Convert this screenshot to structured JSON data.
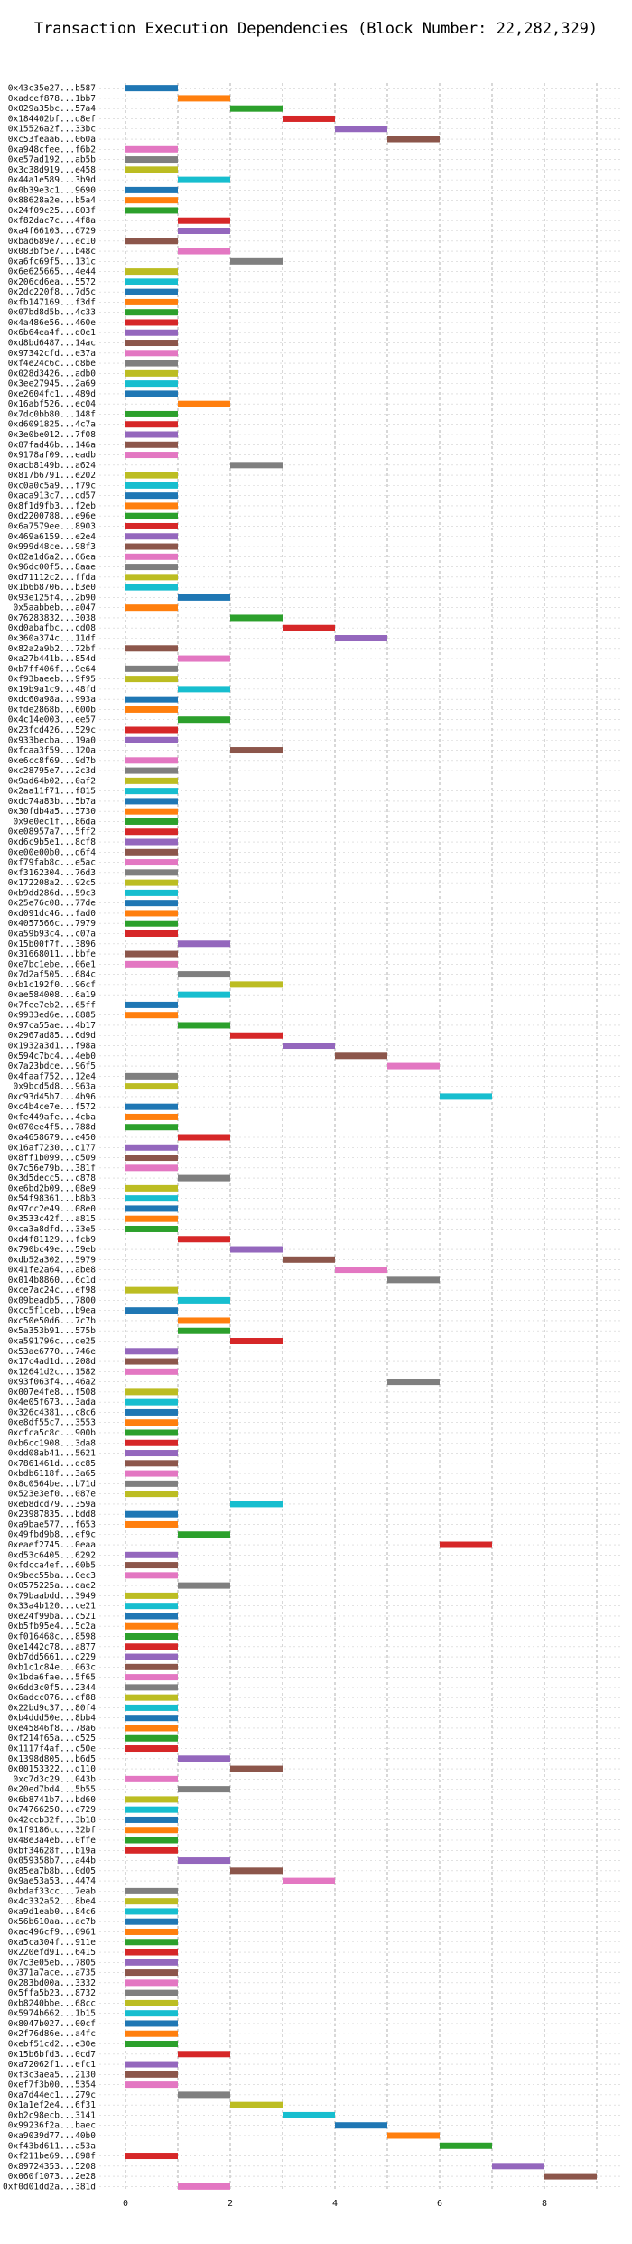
{
  "chart_data": {
    "type": "bar",
    "title": "Transaction Execution Dependencies (Block Number: 22,282,329)",
    "xlabel": "",
    "ylabel": "",
    "xlim": [
      -0.5,
      9.5
    ],
    "xticks": [
      0,
      2,
      4,
      6,
      8
    ],
    "grid": true,
    "palette": [
      "#1f77b4",
      "#ff7f0e",
      "#2ca02c",
      "#d62728",
      "#9467bd",
      "#8c564b",
      "#e377c2",
      "#7f7f7f",
      "#bcbd22",
      "#17becf"
    ],
    "transactions": [
      {
        "hash": "0x43c35e27...b587",
        "start": 0
      },
      {
        "hash": "0xadcef878...1bb7",
        "start": 1
      },
      {
        "hash": "0x029a35bc...57a4",
        "start": 2
      },
      {
        "hash": "0x184402bf...d8ef",
        "start": 3
      },
      {
        "hash": "0x15526a2f...33bc",
        "start": 4
      },
      {
        "hash": "0xc53feaa6...060a",
        "start": 5
      },
      {
        "hash": "0xa948cfee...f6b2",
        "start": 0
      },
      {
        "hash": "0xe57ad192...ab5b",
        "start": 0
      },
      {
        "hash": "0x3c38d919...e458",
        "start": 0
      },
      {
        "hash": "0x44a1e589...3b9d",
        "start": 1
      },
      {
        "hash": "0x0b39e3c1...9690",
        "start": 0
      },
      {
        "hash": "0x88628a2e...b5a4",
        "start": 0
      },
      {
        "hash": "0x24f09c25...803f",
        "start": 0
      },
      {
        "hash": "0xf82dac7c...4f8a",
        "start": 1
      },
      {
        "hash": "0xa4f66103...6729",
        "start": 1
      },
      {
        "hash": "0xbad689e7...ec10",
        "start": 0
      },
      {
        "hash": "0x083bf5e7...b48c",
        "start": 1
      },
      {
        "hash": "0xa6fc69f5...131c",
        "start": 2
      },
      {
        "hash": "0x6e625665...4e44",
        "start": 0
      },
      {
        "hash": "0x206cd6ea...5572",
        "start": 0
      },
      {
        "hash": "0x2dc220f8...7d5c",
        "start": 0
      },
      {
        "hash": "0xfb147169...f3df",
        "start": 0
      },
      {
        "hash": "0x07bd8d5b...4c33",
        "start": 0
      },
      {
        "hash": "0x4a486e56...460e",
        "start": 0
      },
      {
        "hash": "0x6b64ea4f...d0e1",
        "start": 0
      },
      {
        "hash": "0xd8bd6487...14ac",
        "start": 0
      },
      {
        "hash": "0x97342cfd...e37a",
        "start": 0
      },
      {
        "hash": "0xf4e24c6c...d8be",
        "start": 0
      },
      {
        "hash": "0x028d3426...adb0",
        "start": 0
      },
      {
        "hash": "0x3ee27945...2a69",
        "start": 0
      },
      {
        "hash": "0xe2604fc1...489d",
        "start": 0
      },
      {
        "hash": "0x16abf526...ec04",
        "start": 1
      },
      {
        "hash": "0x7dc0bb80...148f",
        "start": 0
      },
      {
        "hash": "0xd6091825...4c7a",
        "start": 0
      },
      {
        "hash": "0x3e0be012...7f08",
        "start": 0
      },
      {
        "hash": "0x87fad46b...146a",
        "start": 0
      },
      {
        "hash": "0x9178af09...eadb",
        "start": 0
      },
      {
        "hash": "0xacb8149b...a624",
        "start": 2
      },
      {
        "hash": "0x817b6791...e202",
        "start": 0
      },
      {
        "hash": "0xc0a0c5a9...f79c",
        "start": 0
      },
      {
        "hash": "0xaca913c7...dd57",
        "start": 0
      },
      {
        "hash": "0x8f1d9fb3...f2eb",
        "start": 0
      },
      {
        "hash": "0xd2200788...e96e",
        "start": 0
      },
      {
        "hash": "0x6a7579ee...8903",
        "start": 0
      },
      {
        "hash": "0x469a6159...e2e4",
        "start": 0
      },
      {
        "hash": "0x999d48ce...98f3",
        "start": 0
      },
      {
        "hash": "0x82a1d6a2...66ea",
        "start": 0
      },
      {
        "hash": "0x96dc00f5...8aae",
        "start": 0
      },
      {
        "hash": "0xd71112c2...ffda",
        "start": 0
      },
      {
        "hash": "0x1b6b8706...b3e0",
        "start": 0
      },
      {
        "hash": "0x93e125f4...2b90",
        "start": 1
      },
      {
        "hash": "0x5aabbeb...a047",
        "start": 0
      },
      {
        "hash": "0x76283832...3038",
        "start": 2
      },
      {
        "hash": "0xd0abafbc...cd08",
        "start": 3
      },
      {
        "hash": "0x360a374c...11df",
        "start": 4
      },
      {
        "hash": "0x82a2a9b2...72bf",
        "start": 0
      },
      {
        "hash": "0xa27b441b...854d",
        "start": 1
      },
      {
        "hash": "0xb7ff406f...9e64",
        "start": 0
      },
      {
        "hash": "0xf93baeeb...9f95",
        "start": 0
      },
      {
        "hash": "0x19b9a1c9...48fd",
        "start": 1
      },
      {
        "hash": "0xdc60a98a...993a",
        "start": 0
      },
      {
        "hash": "0xfde2868b...600b",
        "start": 0
      },
      {
        "hash": "0x4c14e003...ee57",
        "start": 1
      },
      {
        "hash": "0x23fcd426...529c",
        "start": 0
      },
      {
        "hash": "0x933becba...19a0",
        "start": 0
      },
      {
        "hash": "0xfcaa3f59...120a",
        "start": 2
      },
      {
        "hash": "0xe6cc8f69...9d7b",
        "start": 0
      },
      {
        "hash": "0xc28795e7...2c3d",
        "start": 0
      },
      {
        "hash": "0x9ad64b02...0af2",
        "start": 0
      },
      {
        "hash": "0x2aa11f71...f815",
        "start": 0
      },
      {
        "hash": "0xdc74a83b...5b7a",
        "start": 0
      },
      {
        "hash": "0x30fdb4a5...5730",
        "start": 0
      },
      {
        "hash": "0x9e0ec1f...86da",
        "start": 0
      },
      {
        "hash": "0xe08957a7...5ff2",
        "start": 0
      },
      {
        "hash": "0xd6c9b5e1...8cf8",
        "start": 0
      },
      {
        "hash": "0xe00e00b0...d6f4",
        "start": 0
      },
      {
        "hash": "0xf79fab8c...e5ac",
        "start": 0
      },
      {
        "hash": "0xf3162304...76d3",
        "start": 0
      },
      {
        "hash": "0x172208a2...92c5",
        "start": 0
      },
      {
        "hash": "0xb9dd286d...59c3",
        "start": 0
      },
      {
        "hash": "0x25e76c08...77de",
        "start": 0
      },
      {
        "hash": "0xd091dc46...fad0",
        "start": 0
      },
      {
        "hash": "0x4057566c...7979",
        "start": 0
      },
      {
        "hash": "0xa59b93c4...c07a",
        "start": 0
      },
      {
        "hash": "0x15b00f7f...3896",
        "start": 1
      },
      {
        "hash": "0x31668011...bbfe",
        "start": 0
      },
      {
        "hash": "0xe7bc1ebe...06e1",
        "start": 0
      },
      {
        "hash": "0x7d2af505...684c",
        "start": 1
      },
      {
        "hash": "0xb1c192f0...96cf",
        "start": 2
      },
      {
        "hash": "0xae584008...6a19",
        "start": 1
      },
      {
        "hash": "0x7fee7eb2...65ff",
        "start": 0
      },
      {
        "hash": "0x9933ed6e...8885",
        "start": 0
      },
      {
        "hash": "0x97ca55ae...4b17",
        "start": 1
      },
      {
        "hash": "0x2967ad85...6d9d",
        "start": 2
      },
      {
        "hash": "0x1932a3d1...f98a",
        "start": 3
      },
      {
        "hash": "0x594c7bc4...4eb0",
        "start": 4
      },
      {
        "hash": "0x7a23bdce...96f5",
        "start": 5
      },
      {
        "hash": "0x4faaf752...12e4",
        "start": 0
      },
      {
        "hash": "0x9bcd5d8...963a",
        "start": 0
      },
      {
        "hash": "0xc93d45b7...4b96",
        "start": 6
      },
      {
        "hash": "0xc4b4ce7e...f572",
        "start": 0
      },
      {
        "hash": "0xfe449afe...4cba",
        "start": 0
      },
      {
        "hash": "0x070ee4f5...788d",
        "start": 0
      },
      {
        "hash": "0xa4658679...e450",
        "start": 1
      },
      {
        "hash": "0x16af7230...d177",
        "start": 0
      },
      {
        "hash": "0x8ff1b099...d509",
        "start": 0
      },
      {
        "hash": "0x7c56e79b...381f",
        "start": 0
      },
      {
        "hash": "0x3d5decc5...c878",
        "start": 1
      },
      {
        "hash": "0xe6bd2b09...08e9",
        "start": 0
      },
      {
        "hash": "0x54f98361...b8b3",
        "start": 0
      },
      {
        "hash": "0x97cc2e49...08e0",
        "start": 0
      },
      {
        "hash": "0x3533c42f...a815",
        "start": 0
      },
      {
        "hash": "0xca3a8dfd...33e5",
        "start": 0
      },
      {
        "hash": "0xd4f81129...fcb9",
        "start": 1
      },
      {
        "hash": "0x790bc49e...59eb",
        "start": 2
      },
      {
        "hash": "0xdb52a302...5979",
        "start": 3
      },
      {
        "hash": "0x41fe2a64...abe8",
        "start": 4
      },
      {
        "hash": "0x014b8860...6c1d",
        "start": 5
      },
      {
        "hash": "0xce7ac24c...ef98",
        "start": 0
      },
      {
        "hash": "0x09beadb5...7800",
        "start": 1
      },
      {
        "hash": "0xcc5f1ceb...b9ea",
        "start": 0
      },
      {
        "hash": "0xc50e50d6...7c7b",
        "start": 1
      },
      {
        "hash": "0x5a353b91...575b",
        "start": 1
      },
      {
        "hash": "0xa591796c...de25",
        "start": 2
      },
      {
        "hash": "0x53ae6770...746e",
        "start": 0
      },
      {
        "hash": "0x17c4ad1d...208d",
        "start": 0
      },
      {
        "hash": "0x12641d2c...1582",
        "start": 0
      },
      {
        "hash": "0x93f063f4...46a2",
        "start": 5
      },
      {
        "hash": "0x007e4fe8...f508",
        "start": 0
      },
      {
        "hash": "0x4e05f673...3ada",
        "start": 0
      },
      {
        "hash": "0x326c4381...c8c6",
        "start": 0
      },
      {
        "hash": "0xe8df55c7...3553",
        "start": 0
      },
      {
        "hash": "0xcfca5c8c...900b",
        "start": 0
      },
      {
        "hash": "0xb6cc1908...3da8",
        "start": 0
      },
      {
        "hash": "0xdd08ab41...5621",
        "start": 0
      },
      {
        "hash": "0x7861461d...dc85",
        "start": 0
      },
      {
        "hash": "0xbdb6118f...3a65",
        "start": 0
      },
      {
        "hash": "0x8c0564be...b71d",
        "start": 0
      },
      {
        "hash": "0x523e3ef0...087e",
        "start": 0
      },
      {
        "hash": "0xeb8dcd79...359a",
        "start": 2
      },
      {
        "hash": "0x23987835...bdd8",
        "start": 0
      },
      {
        "hash": "0xa9bae577...f653",
        "start": 0
      },
      {
        "hash": "0x49fbd9b8...ef9c",
        "start": 1
      },
      {
        "hash": "0xeaef2745...0eaa",
        "start": 6
      },
      {
        "hash": "0xd53c6405...6292",
        "start": 0
      },
      {
        "hash": "0xfdcca4ef...60b5",
        "start": 0
      },
      {
        "hash": "0x9bec55ba...0ec3",
        "start": 0
      },
      {
        "hash": "0x0575225a...dae2",
        "start": 1
      },
      {
        "hash": "0x79baabdd...3949",
        "start": 0
      },
      {
        "hash": "0x33a4b120...ce21",
        "start": 0
      },
      {
        "hash": "0xe24f99ba...c521",
        "start": 0
      },
      {
        "hash": "0xb5fb95e4...5c2a",
        "start": 0
      },
      {
        "hash": "0xf016468c...8598",
        "start": 0
      },
      {
        "hash": "0xe1442c78...a877",
        "start": 0
      },
      {
        "hash": "0xb7dd5661...d229",
        "start": 0
      },
      {
        "hash": "0xb1c1c84e...063c",
        "start": 0
      },
      {
        "hash": "0x1bda6fae...5f65",
        "start": 0
      },
      {
        "hash": "0x6dd3c0f5...2344",
        "start": 0
      },
      {
        "hash": "0x6adcc076...ef88",
        "start": 0
      },
      {
        "hash": "0x22bd9c37...80f4",
        "start": 0
      },
      {
        "hash": "0xb4ddd50e...8bb4",
        "start": 0
      },
      {
        "hash": "0xe45846f8...78a6",
        "start": 0
      },
      {
        "hash": "0xf214f65a...d525",
        "start": 0
      },
      {
        "hash": "0x1117f4af...c50e",
        "start": 0
      },
      {
        "hash": "0x1398d805...b6d5",
        "start": 1
      },
      {
        "hash": "0x00153322...d110",
        "start": 2
      },
      {
        "hash": "0xc7d3c29...043b",
        "start": 0
      },
      {
        "hash": "0x20ed7bd4...5b55",
        "start": 1
      },
      {
        "hash": "0x6b8741b7...bd60",
        "start": 0
      },
      {
        "hash": "0x74766250...e729",
        "start": 0
      },
      {
        "hash": "0x42ccb32f...3b18",
        "start": 0
      },
      {
        "hash": "0x1f9186cc...32bf",
        "start": 0
      },
      {
        "hash": "0x48e3a4eb...0ffe",
        "start": 0
      },
      {
        "hash": "0xbf34628f...b19a",
        "start": 0
      },
      {
        "hash": "0x059358b7...a44b",
        "start": 1
      },
      {
        "hash": "0x85ea7b8b...0d05",
        "start": 2
      },
      {
        "hash": "0x9ae53a53...4474",
        "start": 3
      },
      {
        "hash": "0xbdaf33cc...7eab",
        "start": 0
      },
      {
        "hash": "0x4c332a52...8be4",
        "start": 0
      },
      {
        "hash": "0xa9d1eab0...84c6",
        "start": 0
      },
      {
        "hash": "0x56b610aa...ac7b",
        "start": 0
      },
      {
        "hash": "0xac496cf9...0961",
        "start": 0
      },
      {
        "hash": "0xa5ca304f...911e",
        "start": 0
      },
      {
        "hash": "0x220efd91...6415",
        "start": 0
      },
      {
        "hash": "0x7c3e05eb...7805",
        "start": 0
      },
      {
        "hash": "0x371a7ace...a735",
        "start": 0
      },
      {
        "hash": "0x283bd00a...3332",
        "start": 0
      },
      {
        "hash": "0x5ffa5b23...8732",
        "start": 0
      },
      {
        "hash": "0xb8240bbe...68cc",
        "start": 0
      },
      {
        "hash": "0x5974b662...1b15",
        "start": 0
      },
      {
        "hash": "0x8047b027...00cf",
        "start": 0
      },
      {
        "hash": "0x2f76d86e...a4fc",
        "start": 0
      },
      {
        "hash": "0xebf51cd2...e30e",
        "start": 0
      },
      {
        "hash": "0x15b6bfd3...0cd7",
        "start": 1
      },
      {
        "hash": "0xa72062f1...efc1",
        "start": 0
      },
      {
        "hash": "0xf3c3aea5...2130",
        "start": 0
      },
      {
        "hash": "0xef7f3b00...5354",
        "start": 0
      },
      {
        "hash": "0xa7d44ec1...279c",
        "start": 1
      },
      {
        "hash": "0x1a1ef2e4...6f31",
        "start": 2
      },
      {
        "hash": "0xb2c98ecb...3141",
        "start": 3
      },
      {
        "hash": "0x99236f2a...baec",
        "start": 4
      },
      {
        "hash": "0xa9039d77...40b0",
        "start": 5
      },
      {
        "hash": "0xf43bd611...a53a",
        "start": 6
      },
      {
        "hash": "0xf211be69...898f",
        "start": 0
      },
      {
        "hash": "0x89724353...5208",
        "start": 7
      },
      {
        "hash": "0x060f1073...2e28",
        "start": 8
      },
      {
        "hash": "0xf0d01dd2a...381d",
        "start": 1
      }
    ]
  }
}
